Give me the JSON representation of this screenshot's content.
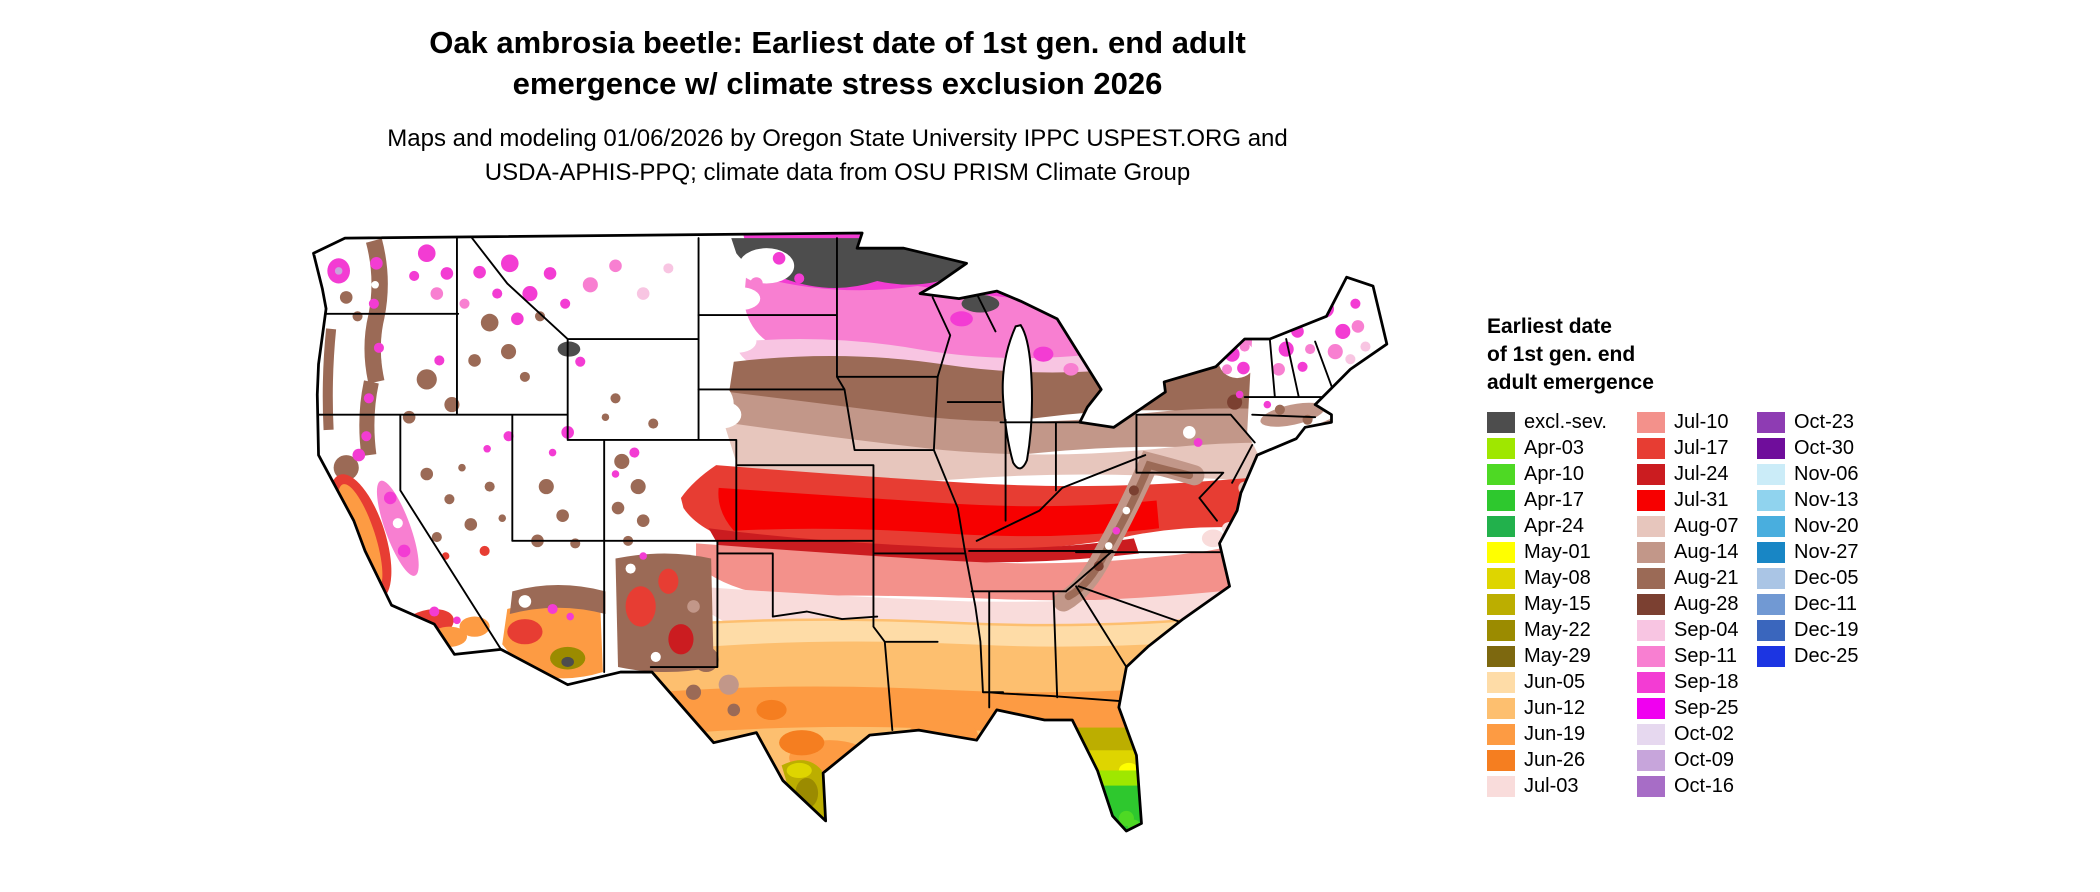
{
  "title": {
    "lines": [
      "Oak ambrosia beetle: Earliest date of 1st gen. end adult",
      "emergence w/ climate stress exclusion 2026"
    ]
  },
  "subtitle": {
    "lines": [
      "Maps and modeling 01/06/2026 by Oregon State University IPPC USPEST.ORG and",
      "USDA-APHIS-PPQ; climate data from OSU PRISM Climate Group"
    ]
  },
  "map": {
    "background_color": "#ffffff",
    "border_color": "#000000"
  },
  "legend": {
    "title_lines": [
      "Earliest date",
      "of 1st gen. end",
      "adult emergence"
    ],
    "columns": [
      {
        "items": [
          {
            "label": "excl.-sev.",
            "color": "#4d4d4d"
          },
          {
            "label": "Apr-03",
            "color": "#9fe700"
          },
          {
            "label": "Apr-10",
            "color": "#4ed924"
          },
          {
            "label": "Apr-17",
            "color": "#2ec82e"
          },
          {
            "label": "Apr-24",
            "color": "#22b14c"
          },
          {
            "label": "May-01",
            "color": "#ffff00"
          },
          {
            "label": "May-08",
            "color": "#ded500"
          },
          {
            "label": "May-15",
            "color": "#bcae00"
          },
          {
            "label": "May-22",
            "color": "#9b8b00"
          },
          {
            "label": "May-29",
            "color": "#7d680f"
          },
          {
            "label": "Jun-05",
            "color": "#fedca7"
          },
          {
            "label": "Jun-12",
            "color": "#fdbf6f"
          },
          {
            "label": "Jun-19",
            "color": "#fd9b43"
          },
          {
            "label": "Jun-26",
            "color": "#f57e20"
          },
          {
            "label": "Jul-03",
            "color": "#f9dcdb"
          }
        ]
      },
      {
        "items": [
          {
            "label": "Jul-10",
            "color": "#f3918b"
          },
          {
            "label": "Jul-17",
            "color": "#e73d33"
          },
          {
            "label": "Jul-24",
            "color": "#cb1c20"
          },
          {
            "label": "Jul-31",
            "color": "#f70000"
          },
          {
            "label": "Aug-07",
            "color": "#e7c6bd"
          },
          {
            "label": "Aug-14",
            "color": "#c29789"
          },
          {
            "label": "Aug-21",
            "color": "#9b6a56"
          },
          {
            "label": "Aug-28",
            "color": "#7b4031"
          },
          {
            "label": "Sep-04",
            "color": "#f8c5e2"
          },
          {
            "label": "Sep-11",
            "color": "#f87fd1"
          },
          {
            "label": "Sep-18",
            "color": "#f33cd3"
          },
          {
            "label": "Sep-25",
            "color": "#f000f0"
          },
          {
            "label": "Oct-02",
            "color": "#e6d8ef"
          },
          {
            "label": "Oct-09",
            "color": "#c7a5db"
          },
          {
            "label": "Oct-16",
            "color": "#a76dc6"
          }
        ]
      },
      {
        "items": [
          {
            "label": "Oct-23",
            "color": "#8e3cb3"
          },
          {
            "label": "Oct-30",
            "color": "#6f0d9b"
          },
          {
            "label": "Nov-06",
            "color": "#cbecf8"
          },
          {
            "label": "Nov-13",
            "color": "#90d3ee"
          },
          {
            "label": "Nov-20",
            "color": "#49aede"
          },
          {
            "label": "Nov-27",
            "color": "#1886c5"
          },
          {
            "label": "Dec-05",
            "color": "#aac5e5"
          },
          {
            "label": "Dec-11",
            "color": "#7199d3"
          },
          {
            "label": "Dec-19",
            "color": "#3a66bd"
          },
          {
            "label": "Dec-25",
            "color": "#1c35e2"
          }
        ]
      }
    ]
  }
}
